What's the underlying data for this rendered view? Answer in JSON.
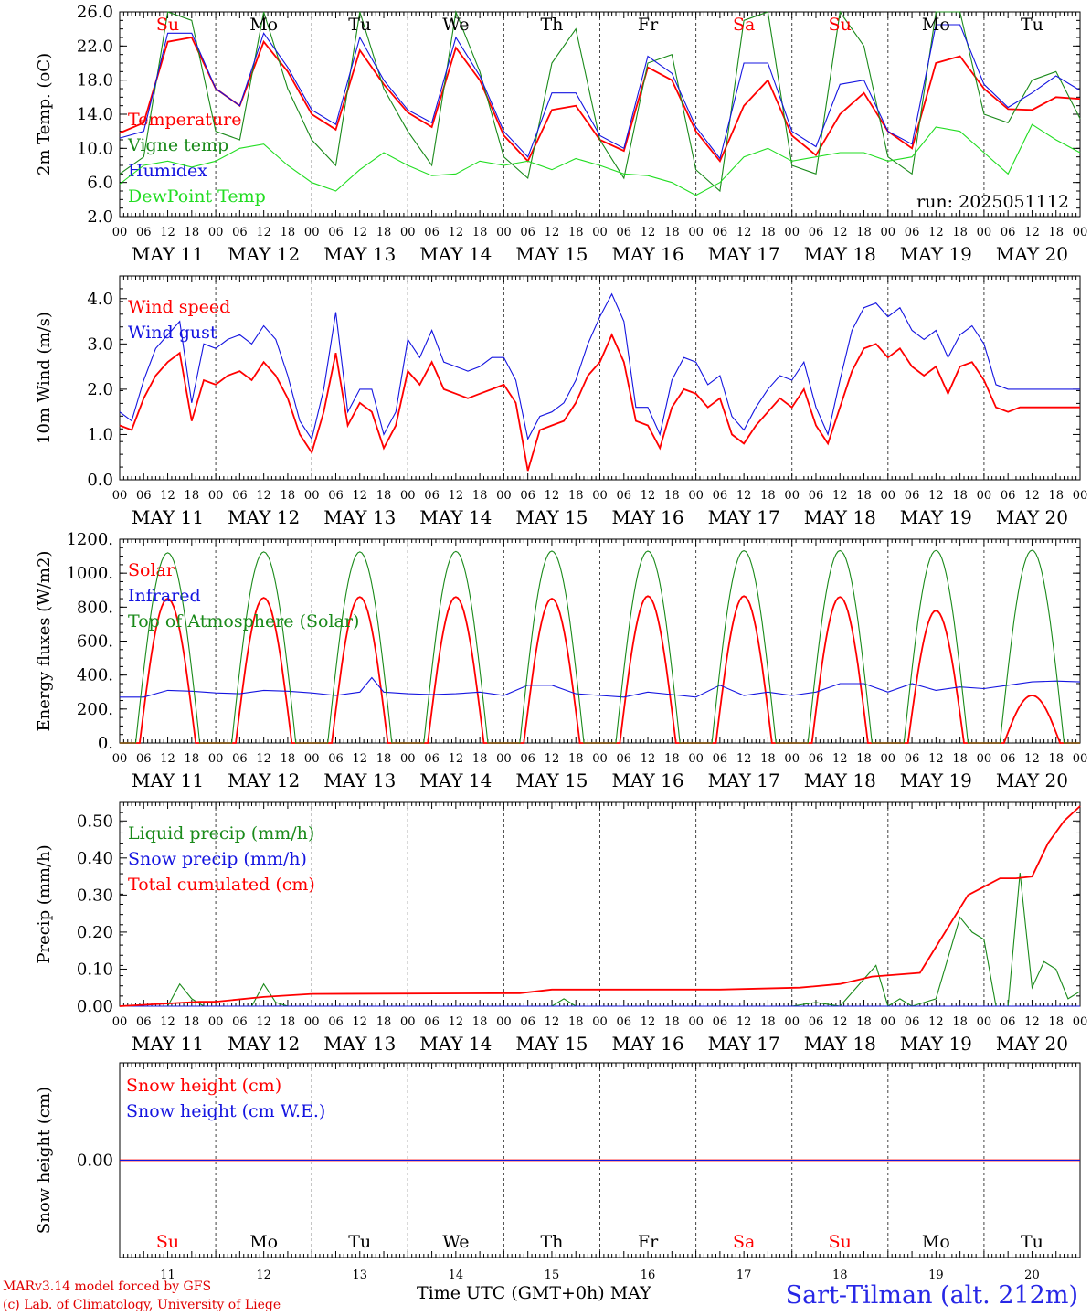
{
  "meta": {
    "run_label": "run: 2025051112"
  },
  "footer": {
    "credit_line1": "MARv3.14 model forced by GFS",
    "credit_line2": "(c) Lab. of Climatology, University of Liege",
    "xaxis_title": "Time UTC (GMT+0h) MAY",
    "site": "Sart-Tilman (alt. 212m)"
  },
  "days": [
    "Su",
    "Mo",
    "Tu",
    "We",
    "Th",
    "Fr",
    "Sa",
    "Su",
    "Mo",
    "Tu"
  ],
  "weekend_days": [
    0,
    6,
    7
  ],
  "dates": [
    "MAY 11",
    "MAY 12",
    "MAY 13",
    "MAY 14",
    "MAY 15",
    "MAY 16",
    "MAY 17",
    "MAY 18",
    "MAY 19",
    "MAY 20"
  ],
  "day_numbers": [
    "11",
    "12",
    "13",
    "14",
    "15",
    "16",
    "17",
    "18",
    "19",
    "20"
  ],
  "hour_ticks": [
    "00",
    "06",
    "12",
    "18"
  ],
  "final_hour_tick": "00",
  "colors": {
    "red": "#ff0000",
    "green": "#1a8a1a",
    "blue": "#1414e0",
    "lightgreen": "#22dd22",
    "text_blue": "#2727e6"
  },
  "chart_data": [
    {
      "type": "line",
      "ylabel": "2m Temp. (oC)",
      "ylim": [
        2,
        26
      ],
      "yticks": [
        "2.0",
        "6.0",
        "10.0",
        "14.0",
        "18.0",
        "22.0",
        "26.0"
      ],
      "x_unit": "hours since 2025-05-11 00 UTC",
      "series": [
        {
          "name": "Temperature",
          "color": "red",
          "x": [
            0,
            6,
            12,
            18,
            24,
            30,
            36,
            42,
            48,
            54,
            60,
            66,
            72,
            78,
            84,
            90,
            96,
            102,
            108,
            114,
            120,
            126,
            132,
            138,
            144,
            150,
            156,
            162,
            168,
            174,
            180,
            186,
            192,
            198,
            204,
            210,
            216,
            222,
            228,
            234,
            240
          ],
          "y": [
            11.8,
            13,
            22.5,
            23,
            17,
            15,
            22.5,
            19,
            14,
            12.2,
            21.5,
            17.5,
            14.2,
            12.5,
            21.8,
            18,
            11.5,
            8.5,
            14.5,
            15,
            11,
            9.7,
            19.5,
            18,
            12,
            8.5,
            15,
            18,
            11.5,
            9.2,
            14,
            16.5,
            12,
            10,
            20,
            20.8,
            17,
            14.6,
            14.5,
            16,
            15.8
          ]
        },
        {
          "name": "Vigne temp",
          "color": "green",
          "x": [
            0,
            6,
            12,
            18,
            24,
            30,
            36,
            42,
            48,
            54,
            60,
            66,
            72,
            78,
            84,
            90,
            96,
            102,
            108,
            114,
            120,
            126,
            132,
            138,
            144,
            150,
            156,
            162,
            168,
            174,
            180,
            186,
            192,
            198,
            204,
            210,
            216,
            222,
            228,
            234,
            240
          ],
          "y": [
            7,
            9,
            26,
            25,
            12,
            11,
            26,
            17,
            11,
            8,
            26,
            17,
            12,
            8,
            26,
            19,
            9,
            6.5,
            20,
            24,
            11,
            6.5,
            20,
            21,
            7.5,
            5,
            25,
            26,
            8,
            7,
            26,
            22,
            9,
            7,
            26,
            26,
            14,
            13,
            18,
            19,
            13.5
          ]
        },
        {
          "name": "Humidex",
          "color": "blue",
          "x": [
            0,
            6,
            12,
            18,
            24,
            30,
            36,
            42,
            48,
            54,
            60,
            66,
            72,
            78,
            84,
            90,
            96,
            102,
            108,
            114,
            120,
            126,
            132,
            138,
            144,
            150,
            156,
            162,
            168,
            174,
            180,
            186,
            192,
            198,
            204,
            210,
            216,
            222,
            228,
            234,
            240
          ],
          "y": [
            11.2,
            12,
            23.5,
            23.5,
            17,
            15,
            23.5,
            19.5,
            14.5,
            12.8,
            23,
            18,
            14.5,
            13,
            23,
            18.5,
            12,
            9,
            16.5,
            16.5,
            11.5,
            10,
            20.8,
            18.8,
            12.5,
            8.8,
            20,
            20,
            12,
            10.2,
            17.5,
            18,
            12,
            10.5,
            24.5,
            24.5,
            17.5,
            14.8,
            16.5,
            18.5,
            16.8
          ]
        },
        {
          "name": "DewPoint Temp",
          "color": "lightgreen",
          "x": [
            0,
            6,
            12,
            18,
            24,
            30,
            36,
            42,
            48,
            54,
            60,
            66,
            72,
            78,
            84,
            90,
            96,
            102,
            108,
            114,
            120,
            126,
            132,
            138,
            144,
            150,
            156,
            162,
            168,
            174,
            180,
            186,
            192,
            198,
            204,
            210,
            216,
            222,
            228,
            234,
            240
          ],
          "y": [
            5.8,
            8,
            8.5,
            7.8,
            8.5,
            10,
            10.5,
            8,
            6,
            5,
            7.5,
            9.5,
            8,
            6.8,
            7,
            8.5,
            8,
            8.5,
            7.5,
            8.8,
            8,
            7,
            6.8,
            6,
            4.5,
            6,
            9,
            10,
            8.5,
            9,
            9.5,
            9.5,
            8.5,
            9,
            12.5,
            12,
            9.5,
            7,
            12.8,
            11,
            9.5
          ]
        }
      ]
    },
    {
      "type": "line",
      "ylabel": "10m Wind (m/s)",
      "ylim": [
        0,
        4.5
      ],
      "yticks": [
        "0.0",
        "1.0",
        "2.0",
        "3.0",
        "4.0"
      ],
      "x_unit": "hours since 2025-05-11 00 UTC",
      "series": [
        {
          "name": "Wind speed",
          "color": "red",
          "x": [
            0,
            3,
            6,
            9,
            12,
            15,
            18,
            21,
            24,
            27,
            30,
            33,
            36,
            39,
            42,
            45,
            48,
            51,
            54,
            57,
            60,
            63,
            66,
            69,
            72,
            75,
            78,
            81,
            84,
            87,
            90,
            93,
            96,
            99,
            102,
            105,
            108,
            111,
            114,
            117,
            120,
            123,
            126,
            129,
            132,
            135,
            138,
            141,
            144,
            147,
            150,
            153,
            156,
            159,
            162,
            165,
            168,
            171,
            174,
            177,
            180,
            183,
            186,
            189,
            192,
            195,
            198,
            201,
            204,
            207,
            210,
            213,
            216,
            219,
            222,
            225,
            228,
            231,
            234,
            237,
            240
          ],
          "y": [
            1.2,
            1.1,
            1.8,
            2.3,
            2.6,
            2.8,
            1.3,
            2.2,
            2.1,
            2.3,
            2.4,
            2.2,
            2.6,
            2.3,
            1.8,
            1,
            0.6,
            1.5,
            2.8,
            1.2,
            1.7,
            1.5,
            0.7,
            1.2,
            2.4,
            2.1,
            2.6,
            2.0,
            1.9,
            1.8,
            1.9,
            2.0,
            2.1,
            1.7,
            0.2,
            1.1,
            1.2,
            1.3,
            1.7,
            2.3,
            2.6,
            3.2,
            2.6,
            1.3,
            1.2,
            0.7,
            1.6,
            2.0,
            1.9,
            1.6,
            1.8,
            1.0,
            0.8,
            1.2,
            1.5,
            1.8,
            1.6,
            2.0,
            1.2,
            0.8,
            1.6,
            2.4,
            2.9,
            3.0,
            2.7,
            2.9,
            2.5,
            2.3,
            2.5,
            1.9,
            2.5,
            2.6,
            2.2,
            1.6,
            1.5,
            1.6,
            1.6,
            1.6,
            1.6,
            1.6,
            1.6
          ]
        },
        {
          "name": "Wind gust",
          "color": "blue",
          "x": [
            0,
            3,
            6,
            9,
            12,
            15,
            18,
            21,
            24,
            27,
            30,
            33,
            36,
            39,
            42,
            45,
            48,
            51,
            54,
            57,
            60,
            63,
            66,
            69,
            72,
            75,
            78,
            81,
            84,
            87,
            90,
            93,
            96,
            99,
            102,
            105,
            108,
            111,
            114,
            117,
            120,
            123,
            126,
            129,
            132,
            135,
            138,
            141,
            144,
            147,
            150,
            153,
            156,
            159,
            162,
            165,
            168,
            171,
            174,
            177,
            180,
            183,
            186,
            189,
            192,
            195,
            198,
            201,
            204,
            207,
            210,
            213,
            216,
            219,
            222,
            225,
            228,
            231,
            234,
            237,
            240
          ],
          "y": [
            1.5,
            1.3,
            2.2,
            2.9,
            3.2,
            3.5,
            1.7,
            3.0,
            2.9,
            3.1,
            3.2,
            3.0,
            3.4,
            3.1,
            2.3,
            1.3,
            0.9,
            2.0,
            3.7,
            1.5,
            2.0,
            2.0,
            1.0,
            1.5,
            3.1,
            2.7,
            3.3,
            2.6,
            2.5,
            2.4,
            2.5,
            2.7,
            2.7,
            2.2,
            0.9,
            1.4,
            1.5,
            1.7,
            2.2,
            3.0,
            3.6,
            4.1,
            3.5,
            1.6,
            1.6,
            1.0,
            2.2,
            2.7,
            2.6,
            2.1,
            2.3,
            1.4,
            1.1,
            1.6,
            2.0,
            2.3,
            2.2,
            2.6,
            1.6,
            1.0,
            2.2,
            3.3,
            3.8,
            3.9,
            3.6,
            3.8,
            3.3,
            3.1,
            3.3,
            2.7,
            3.2,
            3.4,
            3.0,
            2.1,
            2.0,
            2.0,
            2.0,
            2.0,
            2.0,
            2.0,
            2.0
          ]
        }
      ]
    },
    {
      "type": "line",
      "ylabel": "Energy fluxes (W/m2)",
      "ylim": [
        0,
        1200
      ],
      "yticks": [
        "0.",
        "200.",
        "400.",
        "600.",
        "800.",
        "1000.",
        "1200."
      ],
      "x_unit": "hours since 2025-05-11 00 UTC",
      "daily_peaks": {
        "solar": [
          850,
          855,
          860,
          860,
          850,
          865,
          865,
          860,
          780,
          280
        ],
        "top_of_atmosphere": [
          1120,
          1125,
          1125,
          1128,
          1130,
          1130,
          1132,
          1133,
          1134,
          1135
        ]
      },
      "series": [
        {
          "name": "Solar",
          "color": "red",
          "daily_peak_key": "solar"
        },
        {
          "name": "Infrared",
          "color": "blue",
          "x": [
            0,
            6,
            12,
            18,
            24,
            30,
            36,
            42,
            48,
            54,
            60,
            63,
            66,
            72,
            78,
            84,
            90,
            96,
            102,
            108,
            114,
            120,
            126,
            132,
            138,
            144,
            150,
            156,
            162,
            168,
            174,
            180,
            186,
            192,
            198,
            204,
            210,
            216,
            222,
            228,
            234,
            240
          ],
          "y": [
            270,
            270,
            310,
            305,
            295,
            290,
            310,
            305,
            295,
            280,
            300,
            385,
            300,
            290,
            285,
            290,
            300,
            280,
            340,
            340,
            290,
            280,
            270,
            300,
            285,
            270,
            340,
            280,
            300,
            280,
            300,
            350,
            350,
            300,
            350,
            310,
            330,
            320,
            340,
            360,
            365,
            360
          ]
        },
        {
          "name": "Top of Atmosphere (Solar)",
          "color": "green",
          "daily_peak_key": "top_of_atmosphere"
        }
      ]
    },
    {
      "type": "line",
      "ylabel": "Precip (mm/h)",
      "ylim": [
        0,
        0.55
      ],
      "yticks": [
        "0.00",
        "0.10",
        "0.20",
        "0.30",
        "0.40",
        "0.50"
      ],
      "x_unit": "hours since 2025-05-11 00 UTC",
      "series": [
        {
          "name": "Liquid precip (mm/h)",
          "color": "green",
          "x": [
            0,
            12,
            15,
            18,
            21,
            24,
            33,
            36,
            39,
            42,
            48,
            90,
            108,
            111,
            114,
            120,
            150,
            168,
            174,
            180,
            189,
            192,
            195,
            198,
            204,
            210,
            213,
            216,
            219,
            222,
            225,
            228,
            231,
            234,
            237,
            240
          ],
          "y": [
            0,
            0,
            0.06,
            0.02,
            0,
            0,
            0,
            0.06,
            0.01,
            0,
            0,
            0,
            0,
            0.02,
            0,
            0,
            0,
            0,
            0.01,
            0,
            0.11,
            0,
            0.02,
            0,
            0.02,
            0.24,
            0.2,
            0.18,
            0,
            0,
            0.36,
            0.05,
            0.12,
            0.1,
            0.02,
            0.04
          ]
        },
        {
          "name": "Snow precip (mm/h)",
          "color": "blue",
          "x": [
            0,
            240
          ],
          "y": [
            0,
            0
          ]
        },
        {
          "name": "Total cumulated (cm)",
          "color": "red",
          "x": [
            0,
            20,
            24,
            36,
            48,
            100,
            108,
            150,
            170,
            180,
            188,
            200,
            212,
            220,
            224,
            228,
            232,
            236,
            240
          ],
          "y": [
            0,
            0.012,
            0.012,
            0.025,
            0.033,
            0.035,
            0.045,
            0.045,
            0.05,
            0.06,
            0.08,
            0.09,
            0.3,
            0.345,
            0.345,
            0.35,
            0.44,
            0.5,
            0.54
          ]
        }
      ]
    },
    {
      "type": "line",
      "ylabel": "Snow height (cm)",
      "ylim": [
        -0.5,
        0.5
      ],
      "yticks": [
        "0.00"
      ],
      "x_unit": "hours since 2025-05-11 00 UTC",
      "series": [
        {
          "name": "Snow height (cm)",
          "color": "red",
          "x": [
            0,
            240
          ],
          "y": [
            0,
            0
          ]
        },
        {
          "name": "Snow height (cm W.E.)",
          "color": "blue",
          "x": [
            0,
            240
          ],
          "y": [
            0,
            0
          ]
        }
      ]
    }
  ]
}
